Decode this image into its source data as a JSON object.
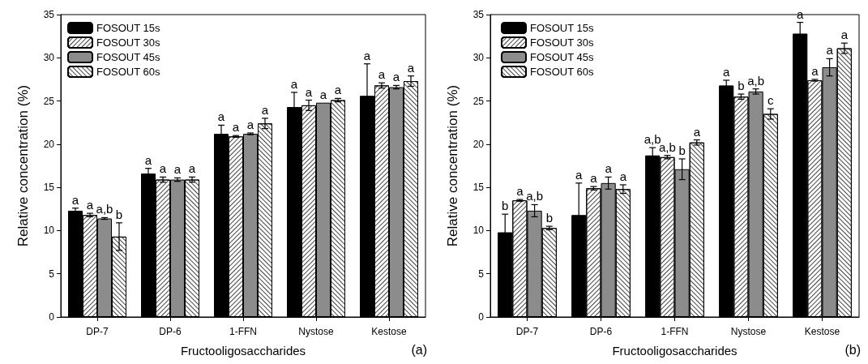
{
  "chart_data": [
    {
      "type": "bar",
      "xlabel": "Fructooligosaccharides",
      "ylabel": "Relative concentration (%)",
      "categories": [
        "DP-7",
        "DP-6",
        "1-FFN",
        "Nystose",
        "Kestose"
      ],
      "ylim": [
        0,
        35
      ],
      "yticks": [
        0,
        5,
        10,
        15,
        20,
        25,
        30,
        35
      ],
      "grid": false,
      "legend": "top left",
      "annotations": [
        "(a)"
      ],
      "series": [
        {
          "name": "FOSOUT 15s",
          "color": "#000000",
          "values": [
            12.3,
            16.6,
            21.2,
            24.3,
            25.6
          ],
          "errors": [
            0.3,
            0.6,
            1.0,
            1.7,
            3.7
          ],
          "value_labels": [
            "a",
            "a",
            "a",
            "a",
            "a"
          ]
        },
        {
          "name": "FOSOUT 30s",
          "color": "#ffffff",
          "values": [
            11.8,
            15.9,
            20.9,
            24.5,
            26.8
          ],
          "errors": [
            0.2,
            0.3,
            0.1,
            0.6,
            0.3
          ],
          "value_labels": [
            "a",
            "a",
            "a",
            "a",
            "a"
          ]
        },
        {
          "name": "FOSOUT 45s",
          "color": "#8c8c8c",
          "values": [
            11.4,
            15.9,
            21.2,
            24.8,
            26.6
          ],
          "errors": [
            0.1,
            0.2,
            0.1,
            null,
            0.2
          ],
          "value_labels": [
            "a,b",
            "a",
            "a",
            "a",
            "a"
          ]
        },
        {
          "name": "FOSOUT 60s",
          "color": "#ffffff",
          "values": [
            9.3,
            15.9,
            22.4,
            25.1,
            27.3
          ],
          "errors": [
            1.6,
            0.3,
            0.6,
            0.2,
            0.6
          ],
          "value_labels": [
            "b",
            "a",
            "a",
            "a",
            "a"
          ]
        }
      ]
    },
    {
      "type": "bar",
      "xlabel": "Fructooligosaccharides",
      "ylabel": "Relative concentration (%)",
      "categories": [
        "DP-7",
        "DP-6",
        "1-FFN",
        "Nystose",
        "Kestose"
      ],
      "ylim": [
        0,
        35
      ],
      "yticks": [
        0,
        5,
        10,
        15,
        20,
        25,
        30,
        35
      ],
      "grid": false,
      "legend": "top left",
      "annotations": [
        "(b)"
      ],
      "series": [
        {
          "name": "FOSOUT 15s",
          "color": "#000000",
          "values": [
            9.8,
            11.8,
            18.7,
            26.8,
            32.8
          ],
          "errors": [
            2.1,
            3.7,
            0.9,
            0.6,
            1.3
          ],
          "value_labels": [
            "b",
            "a",
            "a,b",
            "a",
            "a"
          ]
        },
        {
          "name": "FOSOUT 30s",
          "color": "#ffffff",
          "values": [
            13.5,
            14.9,
            18.5,
            25.5,
            27.4
          ],
          "errors": [
            0.1,
            0.2,
            0.2,
            0.3,
            0.1
          ],
          "value_labels": [
            "a",
            "a",
            "a,b",
            "b",
            "a"
          ]
        },
        {
          "name": "FOSOUT 45s",
          "color": "#8c8c8c",
          "values": [
            12.3,
            15.5,
            17.1,
            26.1,
            28.9
          ],
          "errors": [
            0.7,
            0.7,
            1.2,
            0.3,
            1.0
          ],
          "value_labels": [
            "a,b",
            "a",
            "b",
            "a,b",
            "a"
          ]
        },
        {
          "name": "FOSOUT 60s",
          "color": "#ffffff",
          "values": [
            10.3,
            14.8,
            20.2,
            23.5,
            31.1
          ],
          "errors": [
            0.2,
            0.5,
            0.3,
            0.6,
            0.6
          ],
          "value_labels": [
            "b",
            "a",
            "a",
            "c",
            "a"
          ]
        }
      ]
    }
  ]
}
